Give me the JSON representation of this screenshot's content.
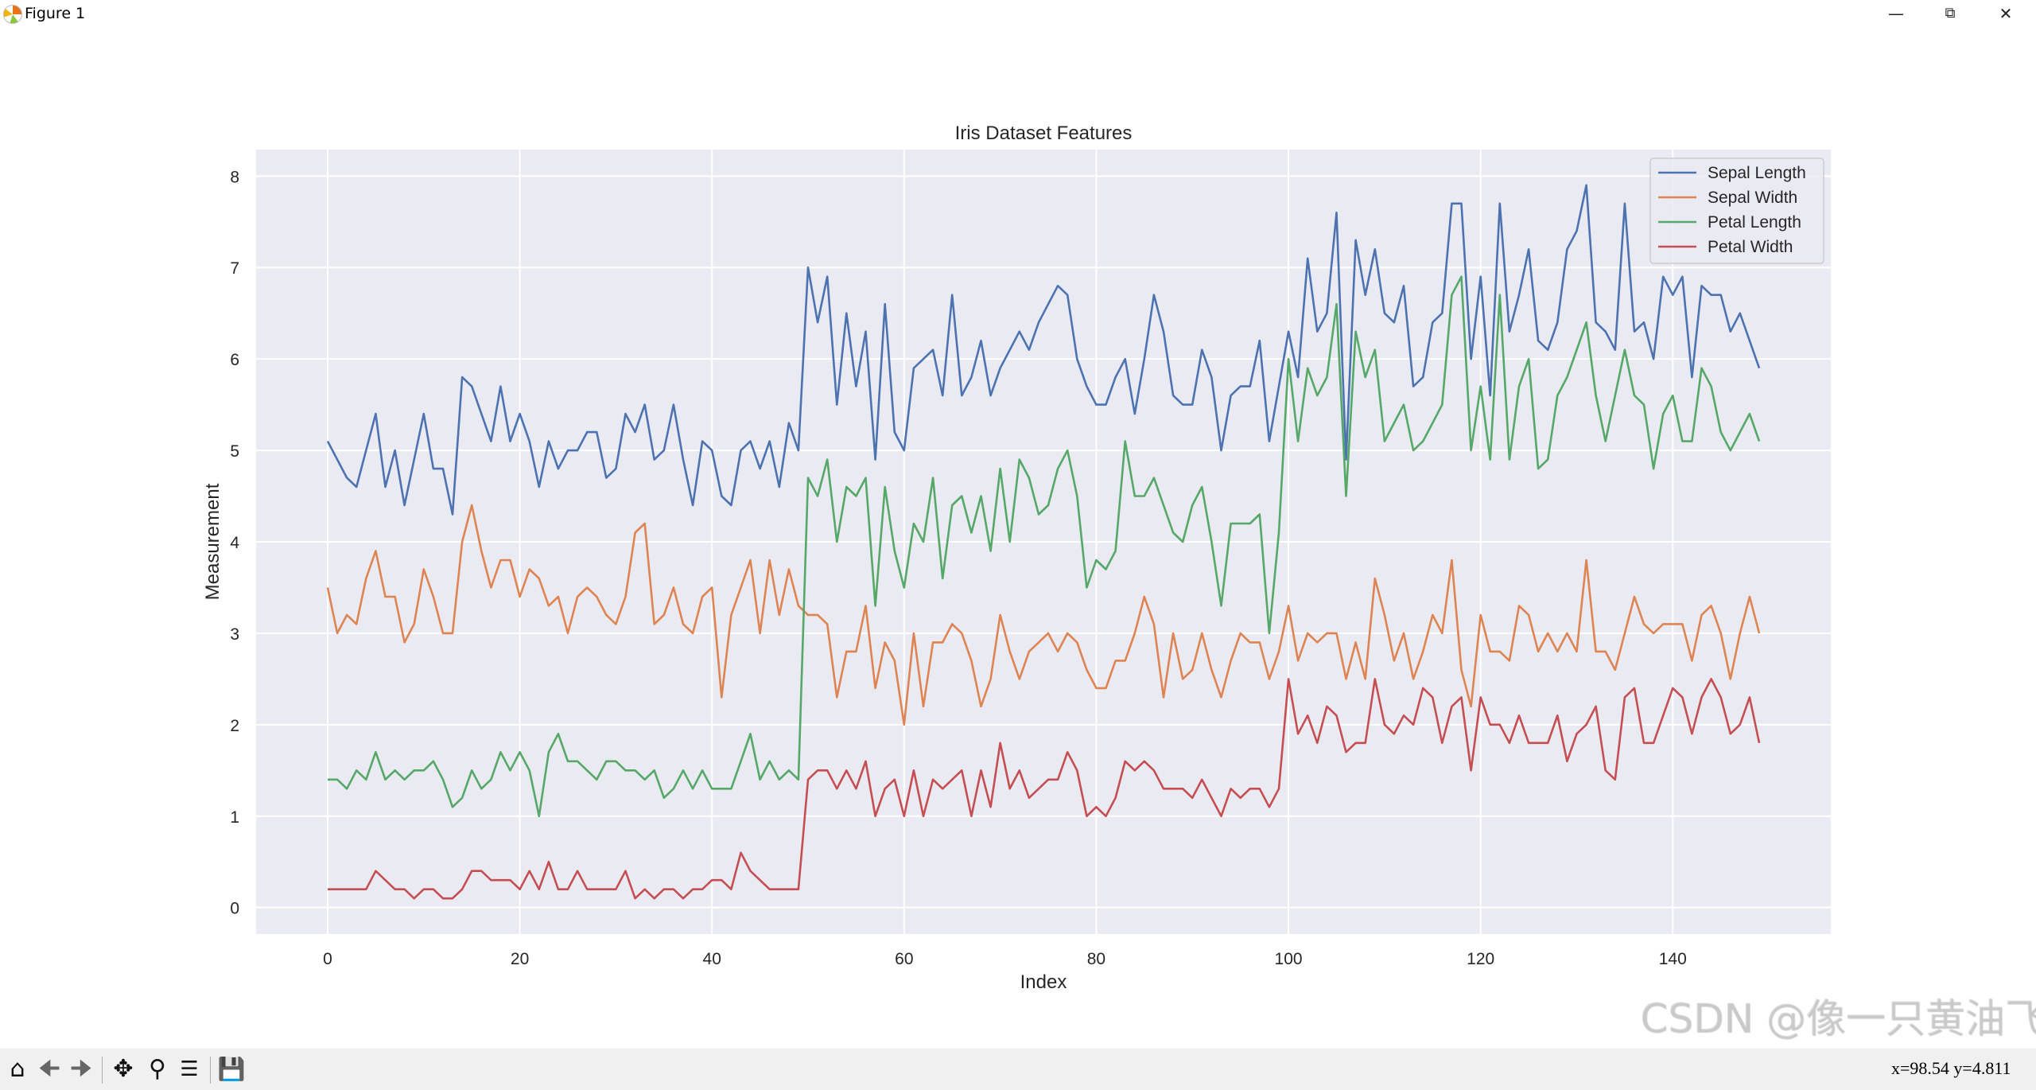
{
  "window": {
    "title": "Figure 1",
    "minimize_icon": "minimize-icon",
    "restore_icon": "restore-icon",
    "close_icon": "close-icon"
  },
  "toolbar": {
    "icons": [
      "home-icon",
      "back-arrow-icon",
      "forward-arrow-icon",
      "pan-icon",
      "zoom-icon",
      "configure-subplots-icon",
      "save-icon"
    ],
    "coordinates": "x=98.54  y=4.811"
  },
  "watermark": "CSDN @像一只黄油飞",
  "chart_data": {
    "type": "line",
    "title": "Iris Dataset Features",
    "xlabel": "Index",
    "ylabel": "Measurement",
    "xlim": [
      -7.45,
      156.45
    ],
    "ylim": [
      -0.29,
      8.29
    ],
    "xticks": [
      0,
      20,
      40,
      60,
      80,
      100,
      120,
      140
    ],
    "yticks": [
      0,
      1,
      2,
      3,
      4,
      5,
      6,
      7,
      8
    ],
    "grid": true,
    "background": "#eaeaf2",
    "legend_position": "top-right",
    "series": [
      {
        "name": "Sepal Length",
        "color": "#4c72b0",
        "values": [
          5.1,
          4.9,
          4.7,
          4.6,
          5.0,
          5.4,
          4.6,
          5.0,
          4.4,
          4.9,
          5.4,
          4.8,
          4.8,
          4.3,
          5.8,
          5.7,
          5.4,
          5.1,
          5.7,
          5.1,
          5.4,
          5.1,
          4.6,
          5.1,
          4.8,
          5.0,
          5.0,
          5.2,
          5.2,
          4.7,
          4.8,
          5.4,
          5.2,
          5.5,
          4.9,
          5.0,
          5.5,
          4.9,
          4.4,
          5.1,
          5.0,
          4.5,
          4.4,
          5.0,
          5.1,
          4.8,
          5.1,
          4.6,
          5.3,
          5.0,
          7.0,
          6.4,
          6.9,
          5.5,
          6.5,
          5.7,
          6.3,
          4.9,
          6.6,
          5.2,
          5.0,
          5.9,
          6.0,
          6.1,
          5.6,
          6.7,
          5.6,
          5.8,
          6.2,
          5.6,
          5.9,
          6.1,
          6.3,
          6.1,
          6.4,
          6.6,
          6.8,
          6.7,
          6.0,
          5.7,
          5.5,
          5.5,
          5.8,
          6.0,
          5.4,
          6.0,
          6.7,
          6.3,
          5.6,
          5.5,
          5.5,
          6.1,
          5.8,
          5.0,
          5.6,
          5.7,
          5.7,
          6.2,
          5.1,
          5.7,
          6.3,
          5.8,
          7.1,
          6.3,
          6.5,
          7.6,
          4.9,
          7.3,
          6.7,
          7.2,
          6.5,
          6.4,
          6.8,
          5.7,
          5.8,
          6.4,
          6.5,
          7.7,
          7.7,
          6.0,
          6.9,
          5.6,
          7.7,
          6.3,
          6.7,
          7.2,
          6.2,
          6.1,
          6.4,
          7.2,
          7.4,
          7.9,
          6.4,
          6.3,
          6.1,
          7.7,
          6.3,
          6.4,
          6.0,
          6.9,
          6.7,
          6.9,
          5.8,
          6.8,
          6.7,
          6.7,
          6.3,
          6.5,
          6.2,
          5.9
        ]
      },
      {
        "name": "Sepal Width",
        "color": "#dd8452",
        "values": [
          3.5,
          3.0,
          3.2,
          3.1,
          3.6,
          3.9,
          3.4,
          3.4,
          2.9,
          3.1,
          3.7,
          3.4,
          3.0,
          3.0,
          4.0,
          4.4,
          3.9,
          3.5,
          3.8,
          3.8,
          3.4,
          3.7,
          3.6,
          3.3,
          3.4,
          3.0,
          3.4,
          3.5,
          3.4,
          3.2,
          3.1,
          3.4,
          4.1,
          4.2,
          3.1,
          3.2,
          3.5,
          3.1,
          3.0,
          3.4,
          3.5,
          2.3,
          3.2,
          3.5,
          3.8,
          3.0,
          3.8,
          3.2,
          3.7,
          3.3,
          3.2,
          3.2,
          3.1,
          2.3,
          2.8,
          2.8,
          3.3,
          2.4,
          2.9,
          2.7,
          2.0,
          3.0,
          2.2,
          2.9,
          2.9,
          3.1,
          3.0,
          2.7,
          2.2,
          2.5,
          3.2,
          2.8,
          2.5,
          2.8,
          2.9,
          3.0,
          2.8,
          3.0,
          2.9,
          2.6,
          2.4,
          2.4,
          2.7,
          2.7,
          3.0,
          3.4,
          3.1,
          2.3,
          3.0,
          2.5,
          2.6,
          3.0,
          2.6,
          2.3,
          2.7,
          3.0,
          2.9,
          2.9,
          2.5,
          2.8,
          3.3,
          2.7,
          3.0,
          2.9,
          3.0,
          3.0,
          2.5,
          2.9,
          2.5,
          3.6,
          3.2,
          2.7,
          3.0,
          2.5,
          2.8,
          3.2,
          3.0,
          3.8,
          2.6,
          2.2,
          3.2,
          2.8,
          2.8,
          2.7,
          3.3,
          3.2,
          2.8,
          3.0,
          2.8,
          3.0,
          2.8,
          3.8,
          2.8,
          2.8,
          2.6,
          3.0,
          3.4,
          3.1,
          3.0,
          3.1,
          3.1,
          3.1,
          2.7,
          3.2,
          3.3,
          3.0,
          2.5,
          3.0,
          3.4,
          3.0
        ]
      },
      {
        "name": "Petal Length",
        "color": "#55a868",
        "values": [
          1.4,
          1.4,
          1.3,
          1.5,
          1.4,
          1.7,
          1.4,
          1.5,
          1.4,
          1.5,
          1.5,
          1.6,
          1.4,
          1.1,
          1.2,
          1.5,
          1.3,
          1.4,
          1.7,
          1.5,
          1.7,
          1.5,
          1.0,
          1.7,
          1.9,
          1.6,
          1.6,
          1.5,
          1.4,
          1.6,
          1.6,
          1.5,
          1.5,
          1.4,
          1.5,
          1.2,
          1.3,
          1.5,
          1.3,
          1.5,
          1.3,
          1.3,
          1.3,
          1.6,
          1.9,
          1.4,
          1.6,
          1.4,
          1.5,
          1.4,
          4.7,
          4.5,
          4.9,
          4.0,
          4.6,
          4.5,
          4.7,
          3.3,
          4.6,
          3.9,
          3.5,
          4.2,
          4.0,
          4.7,
          3.6,
          4.4,
          4.5,
          4.1,
          4.5,
          3.9,
          4.8,
          4.0,
          4.9,
          4.7,
          4.3,
          4.4,
          4.8,
          5.0,
          4.5,
          3.5,
          3.8,
          3.7,
          3.9,
          5.1,
          4.5,
          4.5,
          4.7,
          4.4,
          4.1,
          4.0,
          4.4,
          4.6,
          4.0,
          3.3,
          4.2,
          4.2,
          4.2,
          4.3,
          3.0,
          4.1,
          6.0,
          5.1,
          5.9,
          5.6,
          5.8,
          6.6,
          4.5,
          6.3,
          5.8,
          6.1,
          5.1,
          5.3,
          5.5,
          5.0,
          5.1,
          5.3,
          5.5,
          6.7,
          6.9,
          5.0,
          5.7,
          4.9,
          6.7,
          4.9,
          5.7,
          6.0,
          4.8,
          4.9,
          5.6,
          5.8,
          6.1,
          6.4,
          5.6,
          5.1,
          5.6,
          6.1,
          5.6,
          5.5,
          4.8,
          5.4,
          5.6,
          5.1,
          5.1,
          5.9,
          5.7,
          5.2,
          5.0,
          5.2,
          5.4,
          5.1
        ]
      },
      {
        "name": "Petal Width",
        "color": "#c44e52",
        "values": [
          0.2,
          0.2,
          0.2,
          0.2,
          0.2,
          0.4,
          0.3,
          0.2,
          0.2,
          0.1,
          0.2,
          0.2,
          0.1,
          0.1,
          0.2,
          0.4,
          0.4,
          0.3,
          0.3,
          0.3,
          0.2,
          0.4,
          0.2,
          0.5,
          0.2,
          0.2,
          0.4,
          0.2,
          0.2,
          0.2,
          0.2,
          0.4,
          0.1,
          0.2,
          0.1,
          0.2,
          0.2,
          0.1,
          0.2,
          0.2,
          0.3,
          0.3,
          0.2,
          0.6,
          0.4,
          0.3,
          0.2,
          0.2,
          0.2,
          0.2,
          1.4,
          1.5,
          1.5,
          1.3,
          1.5,
          1.3,
          1.6,
          1.0,
          1.3,
          1.4,
          1.0,
          1.5,
          1.0,
          1.4,
          1.3,
          1.4,
          1.5,
          1.0,
          1.5,
          1.1,
          1.8,
          1.3,
          1.5,
          1.2,
          1.3,
          1.4,
          1.4,
          1.7,
          1.5,
          1.0,
          1.1,
          1.0,
          1.2,
          1.6,
          1.5,
          1.6,
          1.5,
          1.3,
          1.3,
          1.3,
          1.2,
          1.4,
          1.2,
          1.0,
          1.3,
          1.2,
          1.3,
          1.3,
          1.1,
          1.3,
          2.5,
          1.9,
          2.1,
          1.8,
          2.2,
          2.1,
          1.7,
          1.8,
          1.8,
          2.5,
          2.0,
          1.9,
          2.1,
          2.0,
          2.4,
          2.3,
          1.8,
          2.2,
          2.3,
          1.5,
          2.3,
          2.0,
          2.0,
          1.8,
          2.1,
          1.8,
          1.8,
          1.8,
          2.1,
          1.6,
          1.9,
          2.0,
          2.2,
          1.5,
          1.4,
          2.3,
          2.4,
          1.8,
          1.8,
          2.1,
          2.4,
          2.3,
          1.9,
          2.3,
          2.5,
          2.3,
          1.9,
          2.0,
          2.3,
          1.8
        ]
      }
    ]
  }
}
